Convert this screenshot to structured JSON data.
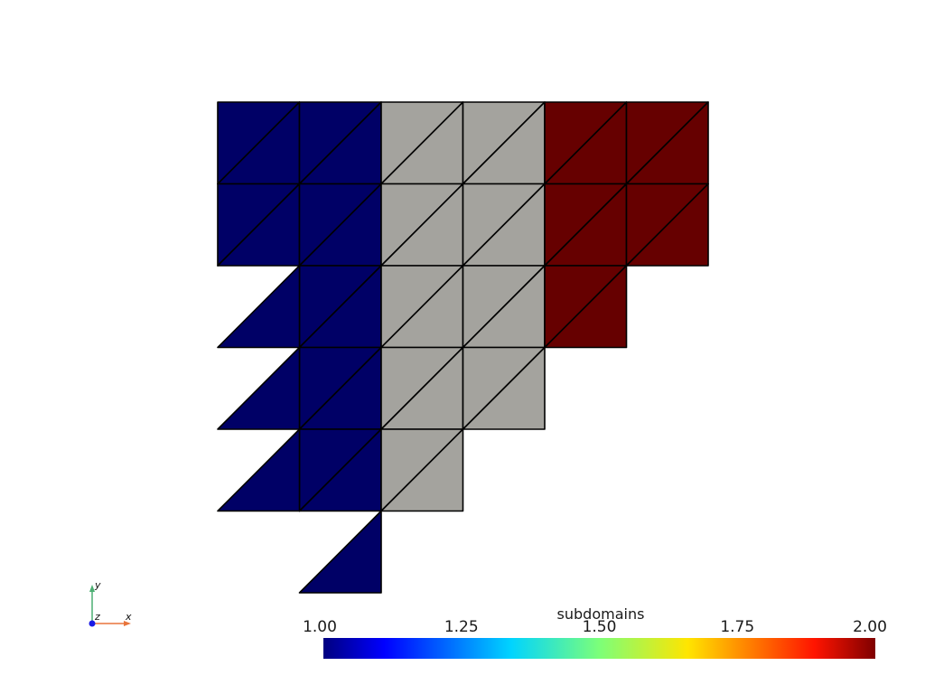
{
  "colors": {
    "low": "#000066",
    "mid": "#a4a39e",
    "high": "#660000",
    "edge": "#000000"
  },
  "mesh": {
    "origin_label": "",
    "cells": [
      {
        "i": 0,
        "j": 0,
        "v": 1
      },
      {
        "i": 1,
        "j": 0,
        "v": 1
      },
      {
        "i": 2,
        "j": 0,
        "v": 1.5
      },
      {
        "i": 3,
        "j": 0,
        "v": 1.5
      },
      {
        "i": 4,
        "j": 0,
        "v": 2
      },
      {
        "i": 5,
        "j": 0,
        "v": 2
      },
      {
        "i": 0,
        "j": 1,
        "v": 1
      },
      {
        "i": 1,
        "j": 1,
        "v": 1
      },
      {
        "i": 2,
        "j": 1,
        "v": 1.5
      },
      {
        "i": 3,
        "j": 1,
        "v": 1.5
      },
      {
        "i": 4,
        "j": 1,
        "v": 2
      },
      {
        "i": 5,
        "j": 1,
        "v": 2
      },
      {
        "i": 1,
        "j": 2,
        "v": 1
      },
      {
        "i": 2,
        "j": 2,
        "v": 1.5
      },
      {
        "i": 3,
        "j": 2,
        "v": 1.5
      },
      {
        "i": 4,
        "j": 2,
        "v": 2
      },
      {
        "i": 1,
        "j": 3,
        "v": 1
      },
      {
        "i": 2,
        "j": 3,
        "v": 1.5
      },
      {
        "i": 3,
        "j": 3,
        "v": 1.5
      },
      {
        "i": 1,
        "j": 4,
        "v": 1
      },
      {
        "i": 2,
        "j": 4,
        "v": 1.5
      }
    ],
    "lower_triangles": [
      {
        "i": 0,
        "j": 2,
        "v": 1
      },
      {
        "i": 0,
        "j": 3,
        "v": 1
      },
      {
        "i": 0,
        "j": 4,
        "v": 1
      },
      {
        "i": 1,
        "j": 5,
        "v": 1
      }
    ]
  },
  "colorbar": {
    "title": "subdomains",
    "min": 1.0,
    "max": 2.0,
    "ticks": [
      "1.00",
      "1.25",
      "1.50",
      "1.75",
      "2.00"
    ]
  },
  "axes": {
    "x_label": "x",
    "y_label": "y",
    "z_label": "z"
  }
}
